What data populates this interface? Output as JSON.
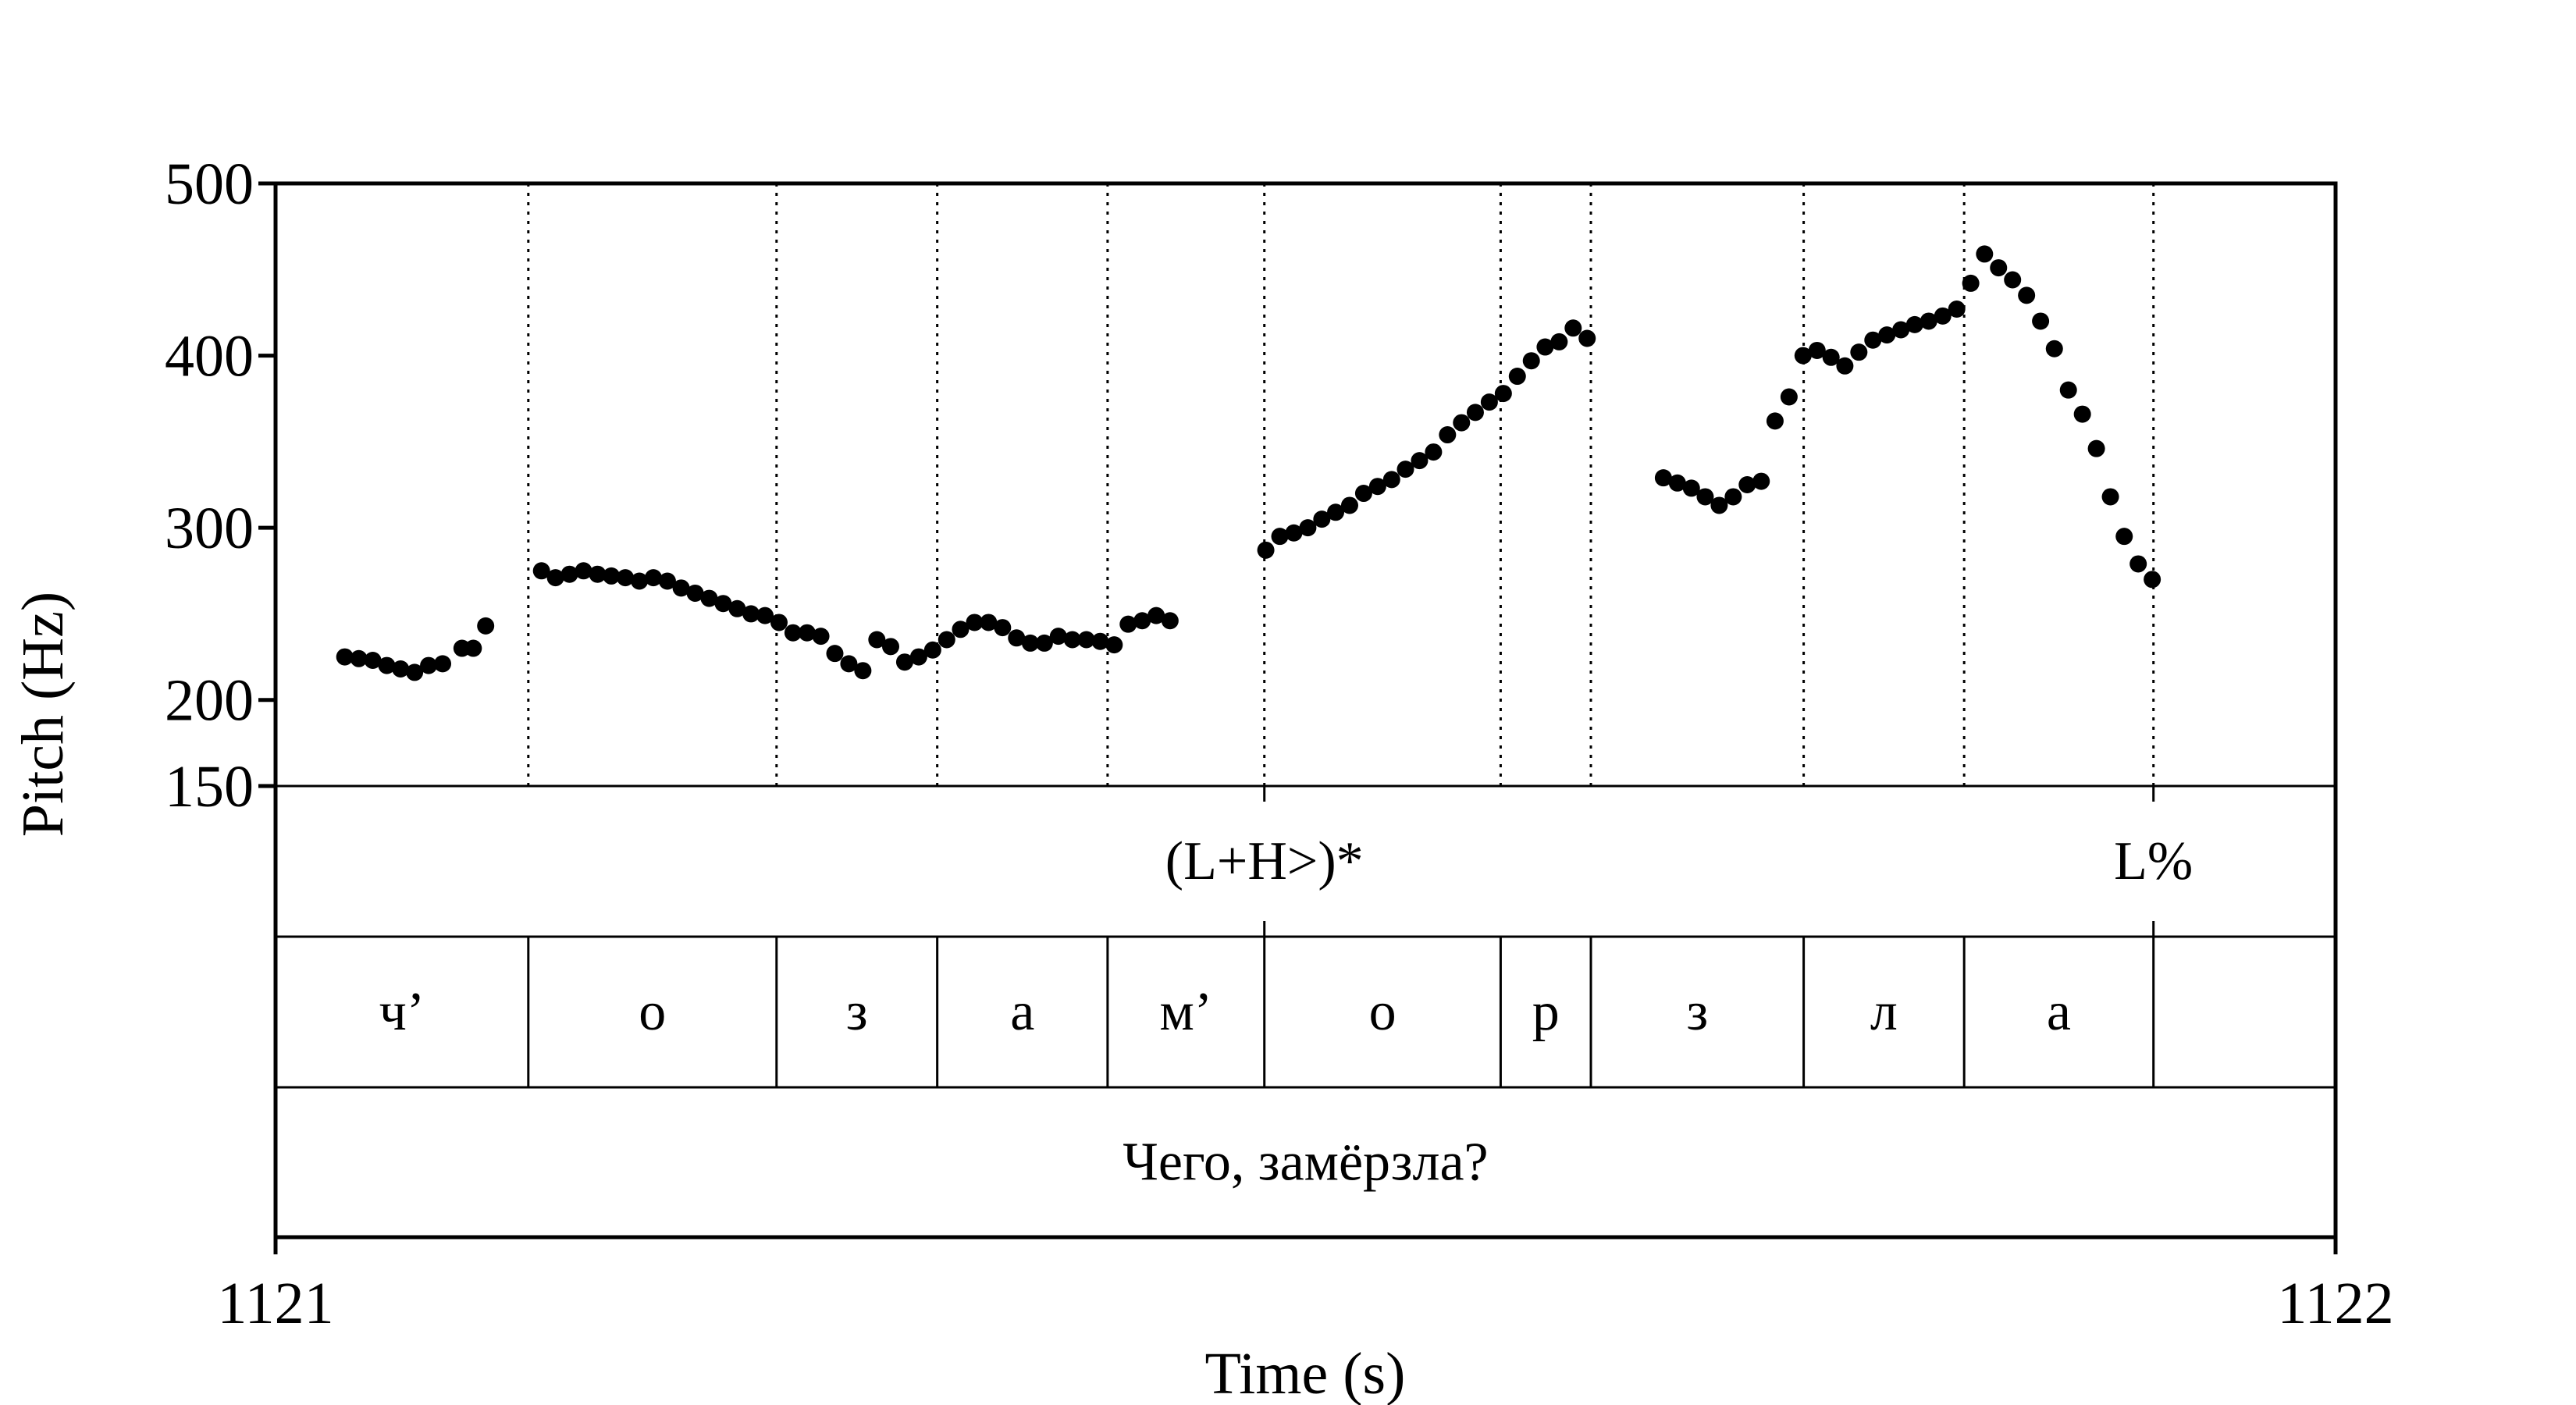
{
  "chart_data": {
    "type": "scatter",
    "xlabel": "Time (s)",
    "ylabel": "Pitch (Hz)",
    "xlim": [
      1121,
      1122
    ],
    "ylim": [
      150,
      500
    ],
    "x_ticks": [
      "1121",
      "1122"
    ],
    "y_ticks": [
      {
        "value": 500,
        "label": "500"
      },
      {
        "value": 400,
        "label": "400"
      },
      {
        "value": 300,
        "label": "300"
      },
      {
        "value": 200,
        "label": "200"
      },
      {
        "value": 150,
        "label": "150"
      }
    ],
    "pitch_points": [
      [
        1121.0336,
        225
      ],
      [
        1121.0404,
        224
      ],
      [
        1121.0472,
        223
      ],
      [
        1121.054,
        220
      ],
      [
        1121.0607,
        218
      ],
      [
        1121.0675,
        216
      ],
      [
        1121.0743,
        220
      ],
      [
        1121.0811,
        221
      ],
      [
        1121.0905,
        230
      ],
      [
        1121.096,
        230
      ],
      [
        1121.102,
        243
      ],
      [
        1121.1291,
        275
      ],
      [
        1121.1359,
        271
      ],
      [
        1121.1427,
        273
      ],
      [
        1121.1495,
        275
      ],
      [
        1121.1563,
        273
      ],
      [
        1121.163,
        272
      ],
      [
        1121.1698,
        271
      ],
      [
        1121.1766,
        269
      ],
      [
        1121.1834,
        271
      ],
      [
        1121.1902,
        269
      ],
      [
        1121.1969,
        265
      ],
      [
        1121.2037,
        262
      ],
      [
        1121.2105,
        259
      ],
      [
        1121.2173,
        256
      ],
      [
        1121.2241,
        253
      ],
      [
        1121.2308,
        250
      ],
      [
        1121.2376,
        249
      ],
      [
        1121.2444,
        245
      ],
      [
        1121.2512,
        239
      ],
      [
        1121.258,
        239
      ],
      [
        1121.2647,
        237
      ],
      [
        1121.2715,
        227
      ],
      [
        1121.2783,
        221
      ],
      [
        1121.2851,
        217
      ],
      [
        1121.2919,
        235
      ],
      [
        1121.2986,
        231
      ],
      [
        1121.3054,
        222
      ],
      [
        1121.3122,
        225
      ],
      [
        1121.319,
        229
      ],
      [
        1121.3258,
        235
      ],
      [
        1121.3325,
        241
      ],
      [
        1121.3393,
        245
      ],
      [
        1121.3461,
        245
      ],
      [
        1121.3529,
        242
      ],
      [
        1121.3597,
        236
      ],
      [
        1121.3664,
        233
      ],
      [
        1121.3732,
        233
      ],
      [
        1121.38,
        237
      ],
      [
        1121.3868,
        235
      ],
      [
        1121.3936,
        235
      ],
      [
        1121.4003,
        234
      ],
      [
        1121.4071,
        232
      ],
      [
        1121.4139,
        244
      ],
      [
        1121.4207,
        246
      ],
      [
        1121.4275,
        249
      ],
      [
        1121.4342,
        246
      ],
      [
        1121.4807,
        287
      ],
      [
        1121.4875,
        295
      ],
      [
        1121.4943,
        297
      ],
      [
        1121.5011,
        300
      ],
      [
        1121.5079,
        305
      ],
      [
        1121.5146,
        309
      ],
      [
        1121.5214,
        313
      ],
      [
        1121.5282,
        320
      ],
      [
        1121.535,
        324
      ],
      [
        1121.5418,
        328
      ],
      [
        1121.5485,
        334
      ],
      [
        1121.5553,
        339
      ],
      [
        1121.5621,
        344
      ],
      [
        1121.5689,
        354
      ],
      [
        1121.5757,
        361
      ],
      [
        1121.5824,
        367
      ],
      [
        1121.5892,
        373
      ],
      [
        1121.596,
        378
      ],
      [
        1121.6028,
        388
      ],
      [
        1121.6096,
        397
      ],
      [
        1121.6163,
        405
      ],
      [
        1121.6231,
        408
      ],
      [
        1121.6299,
        416
      ],
      [
        1121.6367,
        410
      ],
      [
        1121.6737,
        329
      ],
      [
        1121.6805,
        326
      ],
      [
        1121.6873,
        323
      ],
      [
        1121.694,
        318
      ],
      [
        1121.7008,
        313
      ],
      [
        1121.7076,
        318
      ],
      [
        1121.7144,
        325
      ],
      [
        1121.7212,
        327
      ],
      [
        1121.7279,
        362
      ],
      [
        1121.7347,
        376
      ],
      [
        1121.7415,
        400
      ],
      [
        1121.7483,
        403
      ],
      [
        1121.7551,
        399
      ],
      [
        1121.7618,
        394
      ],
      [
        1121.7686,
        402
      ],
      [
        1121.7754,
        409
      ],
      [
        1121.7822,
        412
      ],
      [
        1121.789,
        415
      ],
      [
        1121.7957,
        418
      ],
      [
        1121.8025,
        420
      ],
      [
        1121.8093,
        423
      ],
      [
        1121.8161,
        427
      ],
      [
        1121.8229,
        442
      ],
      [
        1121.8296,
        459
      ],
      [
        1121.8364,
        451
      ],
      [
        1121.8432,
        444
      ],
      [
        1121.85,
        435
      ],
      [
        1121.8568,
        420
      ],
      [
        1121.8635,
        404
      ],
      [
        1121.8703,
        380
      ],
      [
        1121.8771,
        366
      ],
      [
        1121.8839,
        346
      ],
      [
        1121.8907,
        318
      ],
      [
        1121.8974,
        295
      ],
      [
        1121.9042,
        279
      ],
      [
        1121.911,
        270
      ]
    ],
    "boundaries": [
      1121.1227,
      1121.2432,
      1121.3212,
      1121.4039,
      1121.48,
      1121.5947,
      1121.6385,
      1121.7418,
      1121.8197,
      1121.9116
    ],
    "tiers": {
      "tones": [
        {
          "time": 1121.48,
          "label": "(L+H>)*"
        },
        {
          "time": 1121.9116,
          "label": "L%"
        }
      ],
      "segments": [
        {
          "start": 1121.0,
          "end": 1121.1227,
          "label": "ч’"
        },
        {
          "start": 1121.1227,
          "end": 1121.2432,
          "label": "о"
        },
        {
          "start": 1121.2432,
          "end": 1121.3212,
          "label": "з"
        },
        {
          "start": 1121.3212,
          "end": 1121.4039,
          "label": "а"
        },
        {
          "start": 1121.4039,
          "end": 1121.48,
          "label": "м’"
        },
        {
          "start": 1121.48,
          "end": 1121.5947,
          "label": "о"
        },
        {
          "start": 1121.5947,
          "end": 1121.6385,
          "label": "р"
        },
        {
          "start": 1121.6385,
          "end": 1121.7418,
          "label": "з"
        },
        {
          "start": 1121.7418,
          "end": 1121.8197,
          "label": "л"
        },
        {
          "start": 1121.8197,
          "end": 1121.9116,
          "label": "а"
        },
        {
          "start": 1121.9116,
          "end": 1122.0,
          "label": ""
        }
      ],
      "utterance": "Чего, замёрзла?"
    }
  }
}
